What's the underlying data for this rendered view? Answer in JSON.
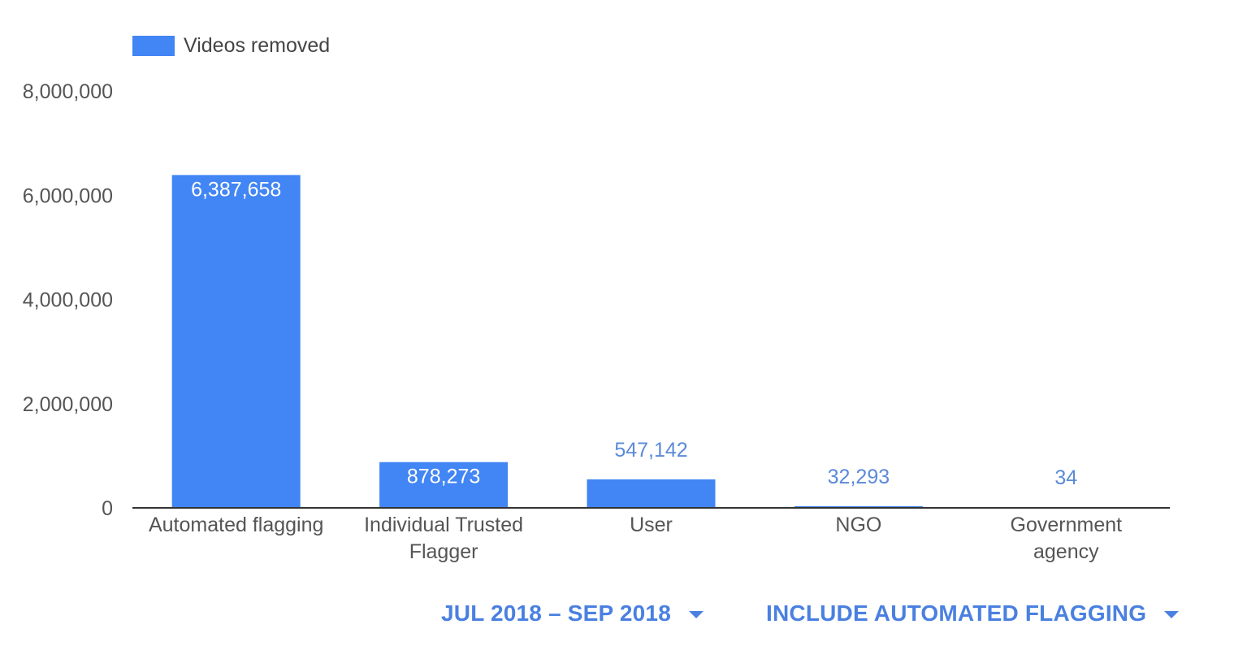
{
  "colors": {
    "bar": "#4285f4",
    "axis_text": "#555555",
    "label_outside": "#5b8ad8",
    "label_inside": "#ffffff",
    "control_text": "#4a80e0",
    "baseline": "#333333"
  },
  "legend": {
    "label": "Videos removed"
  },
  "controls": {
    "period_label": "JUL 2018 – SEP 2018",
    "period_icon": "dropdown-arrow-icon",
    "filter_label": "INCLUDE AUTOMATED FLAGGING",
    "filter_icon": "dropdown-arrow-icon"
  },
  "chart_data": {
    "type": "bar",
    "categories": [
      "Automated flagging",
      "Individual Trusted Flagger",
      "User",
      "NGO",
      "Government agency"
    ],
    "category_lines": [
      [
        "Automated flagging"
      ],
      [
        "Individual Trusted",
        "Flagger"
      ],
      [
        "User"
      ],
      [
        "NGO"
      ],
      [
        "Government",
        "agency"
      ]
    ],
    "series": [
      {
        "name": "Videos removed",
        "values": [
          6387658,
          878273,
          547142,
          32293,
          34
        ],
        "value_labels": [
          "6,387,658",
          "878,273",
          "547,142",
          "32,293",
          "34"
        ]
      }
    ],
    "yticks": [
      0,
      2000000,
      4000000,
      6000000,
      8000000
    ],
    "ytick_labels": [
      "0",
      "2,000,000",
      "4,000,000",
      "6,000,000",
      "8,000,000"
    ],
    "ylim": [
      0,
      8000000
    ],
    "grid": false,
    "legend_position": "top-left"
  }
}
